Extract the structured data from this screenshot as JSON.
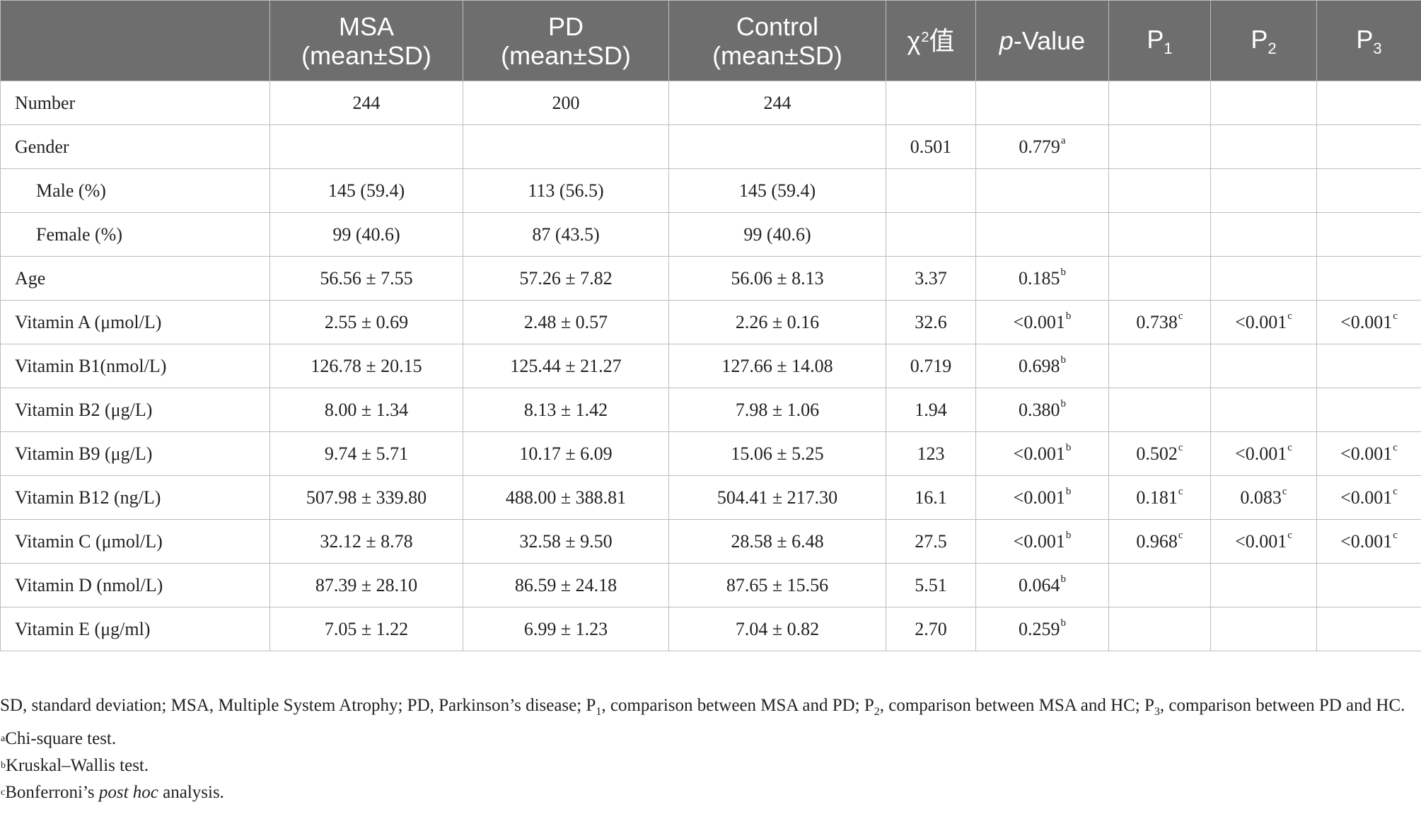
{
  "table": {
    "headers": [
      "",
      [
        "MSA",
        "(mean±SD)"
      ],
      [
        "PD",
        "(mean±SD)"
      ],
      [
        "Control",
        "(mean±SD)"
      ],
      {
        "base": "χ",
        "sup": "2",
        "after": "值"
      },
      {
        "ital": "p",
        "rest": "-Value"
      },
      {
        "base": "P",
        "sub": "1"
      },
      {
        "base": "P",
        "sub": "2"
      },
      {
        "base": "P",
        "sub": "3"
      }
    ],
    "rows": [
      {
        "label": "Number",
        "indent": false,
        "cells": [
          "244",
          "200",
          "244",
          "",
          "",
          "",
          "",
          ""
        ],
        "marks": [
          "",
          "",
          "",
          "",
          "",
          "",
          "",
          ""
        ]
      },
      {
        "label": "Gender",
        "indent": false,
        "cells": [
          "",
          "",
          "",
          "0.501",
          "0.779",
          "",
          "",
          ""
        ],
        "marks": [
          "",
          "",
          "",
          "",
          "a",
          "",
          "",
          ""
        ]
      },
      {
        "label": "Male (%)",
        "indent": true,
        "cells": [
          "145 (59.4)",
          "113 (56.5)",
          "145 (59.4)",
          "",
          "",
          "",
          "",
          ""
        ],
        "marks": [
          "",
          "",
          "",
          "",
          "",
          "",
          "",
          ""
        ]
      },
      {
        "label": "Female (%)",
        "indent": true,
        "cells": [
          "99 (40.6)",
          "87 (43.5)",
          "99 (40.6)",
          "",
          "",
          "",
          "",
          ""
        ],
        "marks": [
          "",
          "",
          "",
          "",
          "",
          "",
          "",
          ""
        ]
      },
      {
        "label": "Age",
        "indent": false,
        "cells": [
          "56.56 ± 7.55",
          "57.26 ± 7.82",
          "56.06 ± 8.13",
          "3.37",
          "0.185",
          "",
          "",
          ""
        ],
        "marks": [
          "",
          "",
          "",
          "",
          "b",
          "",
          "",
          ""
        ]
      },
      {
        "label": "Vitamin A (μmol/L)",
        "indent": false,
        "cells": [
          "2.55 ± 0.69",
          "2.48 ± 0.57",
          "2.26 ± 0.16",
          "32.6",
          "<0.001",
          "0.738",
          "<0.001",
          "<0.001"
        ],
        "marks": [
          "",
          "",
          "",
          "",
          "b",
          "c",
          "c",
          "c"
        ]
      },
      {
        "label": "Vitamin B1(nmol/L)",
        "indent": false,
        "cells": [
          "126.78 ± 20.15",
          "125.44 ± 21.27",
          "127.66 ± 14.08",
          "0.719",
          "0.698",
          "",
          "",
          ""
        ],
        "marks": [
          "",
          "",
          "",
          "",
          "b",
          "",
          "",
          ""
        ]
      },
      {
        "label": "Vitamin B2 (μg/L)",
        "indent": false,
        "cells": [
          "8.00 ± 1.34",
          "8.13 ± 1.42",
          "7.98 ± 1.06",
          "1.94",
          "0.380",
          "",
          "",
          ""
        ],
        "marks": [
          "",
          "",
          "",
          "",
          "b",
          "",
          "",
          ""
        ]
      },
      {
        "label": "Vitamin B9 (μg/L)",
        "indent": false,
        "cells": [
          "9.74 ± 5.71",
          "10.17 ± 6.09",
          "15.06 ± 5.25",
          "123",
          "<0.001",
          "0.502",
          "<0.001",
          "<0.001"
        ],
        "marks": [
          "",
          "",
          "",
          "",
          "b",
          "c",
          "c",
          "c"
        ]
      },
      {
        "label": "Vitamin B12 (ng/L)",
        "indent": false,
        "cells": [
          "507.98 ± 339.80",
          "488.00 ± 388.81",
          "504.41 ± 217.30",
          "16.1",
          "<0.001",
          "0.181",
          "0.083",
          "<0.001"
        ],
        "marks": [
          "",
          "",
          "",
          "",
          "b",
          "c",
          "c",
          "c"
        ]
      },
      {
        "label": "Vitamin C (μmol/L)",
        "indent": false,
        "cells": [
          "32.12 ± 8.78",
          "32.58 ± 9.50",
          "28.58 ± 6.48",
          "27.5",
          "<0.001",
          "0.968",
          "<0.001",
          "<0.001"
        ],
        "marks": [
          "",
          "",
          "",
          "",
          "b",
          "c",
          "c",
          "c"
        ]
      },
      {
        "label": "Vitamin D (nmol/L)",
        "indent": false,
        "cells": [
          "87.39 ± 28.10",
          "86.59 ± 24.18",
          "87.65 ± 15.56",
          "5.51",
          "0.064",
          "",
          "",
          ""
        ],
        "marks": [
          "",
          "",
          "",
          "",
          "b",
          "",
          "",
          ""
        ]
      },
      {
        "label": "Vitamin E (μg/ml)",
        "indent": false,
        "cells": [
          "7.05 ± 1.22",
          "6.99 ± 1.23",
          "7.04 ± 0.82",
          "2.70",
          "0.259",
          "",
          "",
          ""
        ],
        "marks": [
          "",
          "",
          "",
          "",
          "b",
          "",
          "",
          ""
        ]
      }
    ]
  },
  "footnotes": {
    "abbrev": {
      "t1": "SD, standard deviation; MSA, Multiple System Atrophy; PD, Parkinson’s disease; P",
      "s1": "1",
      "t2": ", comparison between MSA and PD; P",
      "s2": "2",
      "t3": ", comparison between MSA and HC; P",
      "s3": "3",
      "t4": ", comparison between PD and HC."
    },
    "a": {
      "mark": "a",
      "text": "Chi-square test."
    },
    "b": {
      "mark": "b",
      "text": "Kruskal–Wallis test."
    },
    "c": {
      "mark": "c",
      "text_before": "Bonferroni’s ",
      "text_ital": "post hoc",
      "text_after": " analysis."
    }
  }
}
